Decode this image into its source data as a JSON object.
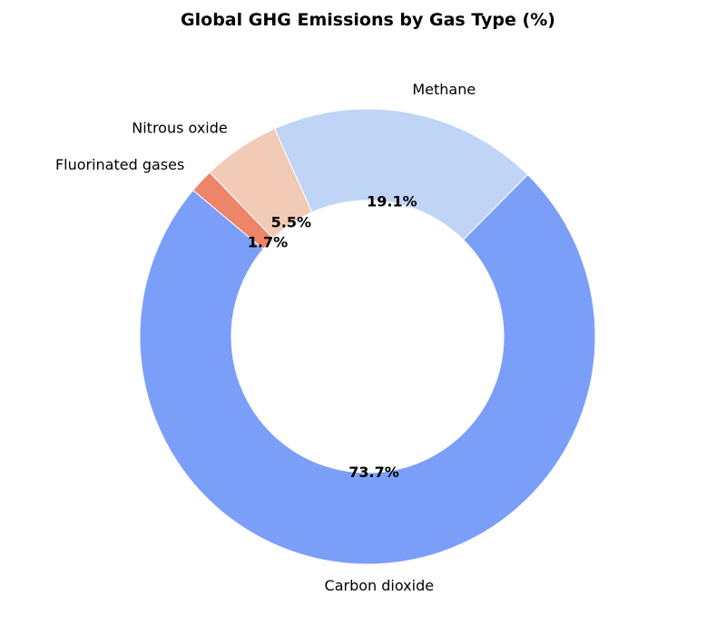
{
  "chart_data": {
    "type": "pie",
    "variant": "donut",
    "title": "Global GHG Emissions by Gas Type (%)",
    "categories": [
      "Carbon dioxide",
      "Methane",
      "Nitrous oxide",
      "Fluorinated gases"
    ],
    "values": [
      73.7,
      19.1,
      5.5,
      1.7
    ],
    "value_labels": [
      "73.7%",
      "19.1%",
      "5.5%",
      "1.7%"
    ],
    "colors": [
      "#7b9ff9",
      "#c0d4f5",
      "#f2cbb7",
      "#ee8468"
    ],
    "start_angle_deg": 140,
    "direction": "counterclockwise",
    "legend": "none"
  }
}
